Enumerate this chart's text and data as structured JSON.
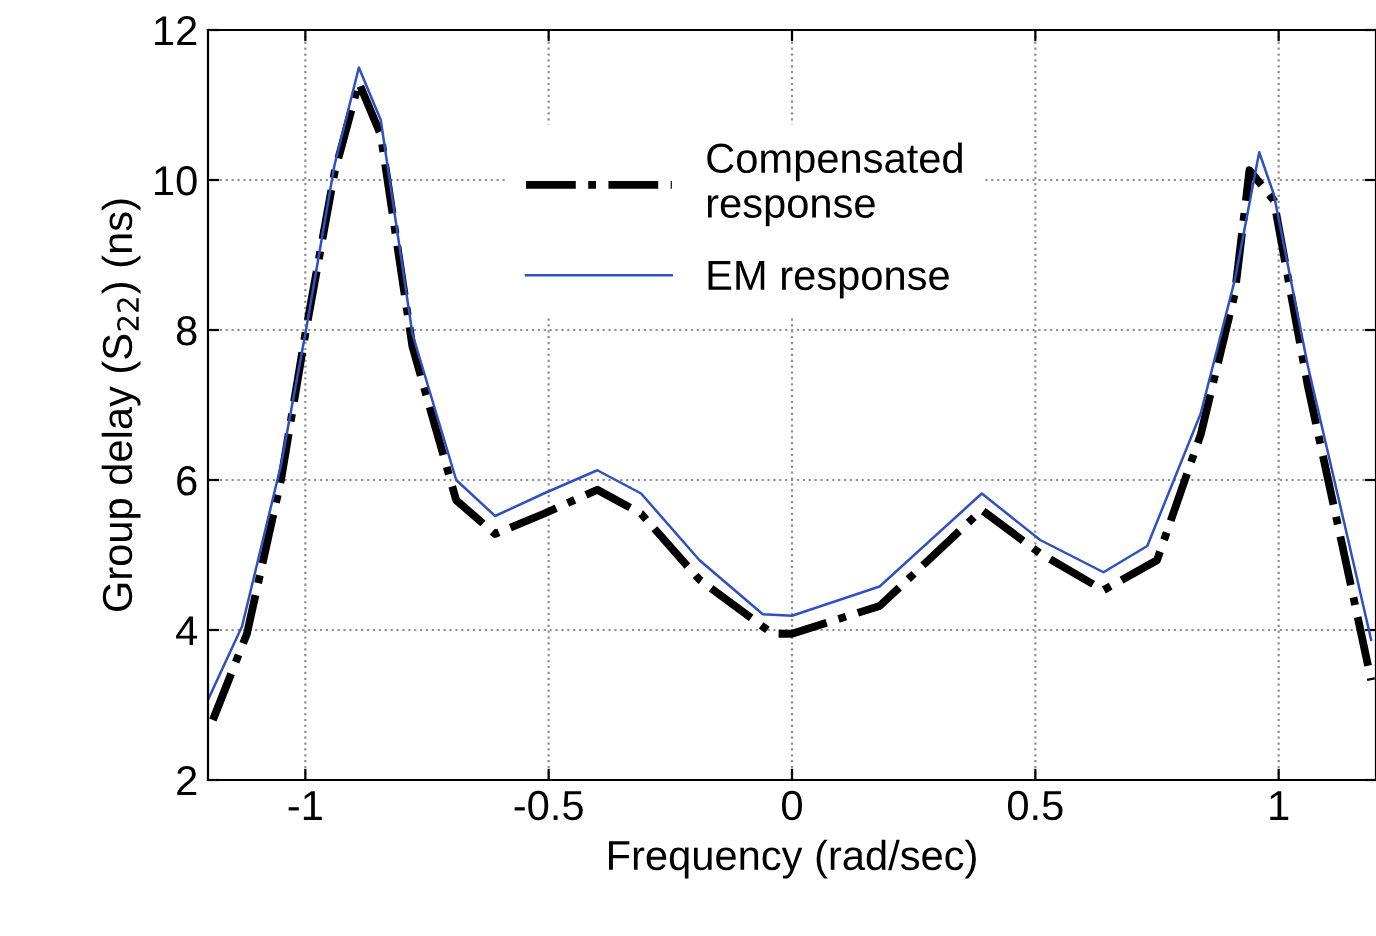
{
  "chart_data": {
    "type": "line",
    "xlabel": "Frequency (rad/sec)",
    "ylabel": "Group delay (S$_{22}$) (ns)",
    "xlim": [
      -1.2,
      1.2
    ],
    "ylim": [
      2,
      12
    ],
    "xticks": [
      -1,
      -0.5,
      0,
      0.5,
      1
    ],
    "yticks": [
      2,
      4,
      6,
      8,
      10,
      12
    ],
    "grid": true,
    "legend": "top",
    "series": [
      {
        "name": "Compensated\nresponse",
        "color": "#000000",
        "line_style": "dashdot",
        "x": [
          -1.19,
          -1.12,
          -1.05,
          -1.0,
          -0.94,
          -0.89,
          -0.845,
          -0.78,
          -0.69,
          -0.61,
          -0.51,
          -0.4,
          -0.31,
          -0.19,
          -0.04,
          0,
          0.18,
          0.39,
          0.51,
          0.64,
          0.75,
          0.84,
          0.91,
          0.94,
          0.99,
          1.06,
          1.14,
          1.19
        ],
        "values": [
          2.8,
          3.95,
          6.0,
          7.95,
          10.1,
          11.3,
          10.6,
          7.78,
          5.73,
          5.28,
          5.55,
          5.87,
          5.55,
          4.67,
          3.95,
          3.95,
          4.32,
          5.6,
          5.02,
          4.53,
          4.93,
          6.61,
          8.49,
          10.13,
          9.73,
          7.25,
          4.85,
          3.33
        ]
      },
      {
        "name": "EM response",
        "color": "#3050c0",
        "line_style": "solid",
        "x": [
          -1.2,
          -1.13,
          -1.05,
          -1.0,
          -0.94,
          -0.89,
          -0.845,
          -0.78,
          -0.69,
          -0.61,
          -0.51,
          -0.4,
          -0.31,
          -0.19,
          -0.06,
          0,
          0.18,
          0.39,
          0.51,
          0.64,
          0.73,
          0.84,
          0.91,
          0.96,
          0.99,
          1.06,
          1.14,
          1.19
        ],
        "values": [
          3.07,
          4.05,
          6.2,
          7.95,
          10.2,
          11.5,
          10.8,
          7.95,
          6.0,
          5.52,
          5.82,
          6.13,
          5.82,
          4.93,
          4.21,
          4.19,
          4.58,
          5.82,
          5.2,
          4.77,
          5.12,
          6.89,
          8.67,
          10.37,
          9.81,
          7.52,
          5.28,
          3.87
        ]
      }
    ]
  }
}
